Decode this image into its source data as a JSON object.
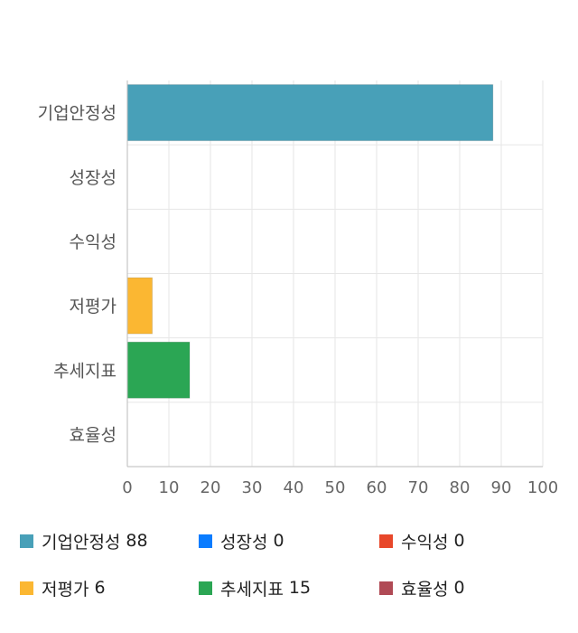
{
  "chart_data": {
    "type": "bar",
    "orientation": "horizontal",
    "categories": [
      "기업안정성",
      "성장성",
      "수익성",
      "저평가",
      "추세지표",
      "효율성"
    ],
    "values": [
      88,
      0,
      0,
      6,
      15,
      0
    ],
    "colors": [
      "#48a0b8",
      "#0a7cff",
      "#e8472a",
      "#fbb732",
      "#2ba654",
      "#b04a55"
    ],
    "xlim": [
      0,
      100
    ],
    "xticks": [
      0,
      10,
      20,
      30,
      40,
      50,
      60,
      70,
      80,
      90,
      100
    ],
    "grid": true,
    "legend_position": "bottom"
  },
  "legend": [
    {
      "label": "기업안정성",
      "value": "88",
      "color": "#48a0b8"
    },
    {
      "label": "성장성",
      "value": "0",
      "color": "#0a7cff"
    },
    {
      "label": "수익성",
      "value": "0",
      "color": "#e8472a"
    },
    {
      "label": "저평가",
      "value": "6",
      "color": "#fbb732"
    },
    {
      "label": "추세지표",
      "value": "15",
      "color": "#2ba654"
    },
    {
      "label": "효율성",
      "value": "0",
      "color": "#b04a55"
    }
  ]
}
